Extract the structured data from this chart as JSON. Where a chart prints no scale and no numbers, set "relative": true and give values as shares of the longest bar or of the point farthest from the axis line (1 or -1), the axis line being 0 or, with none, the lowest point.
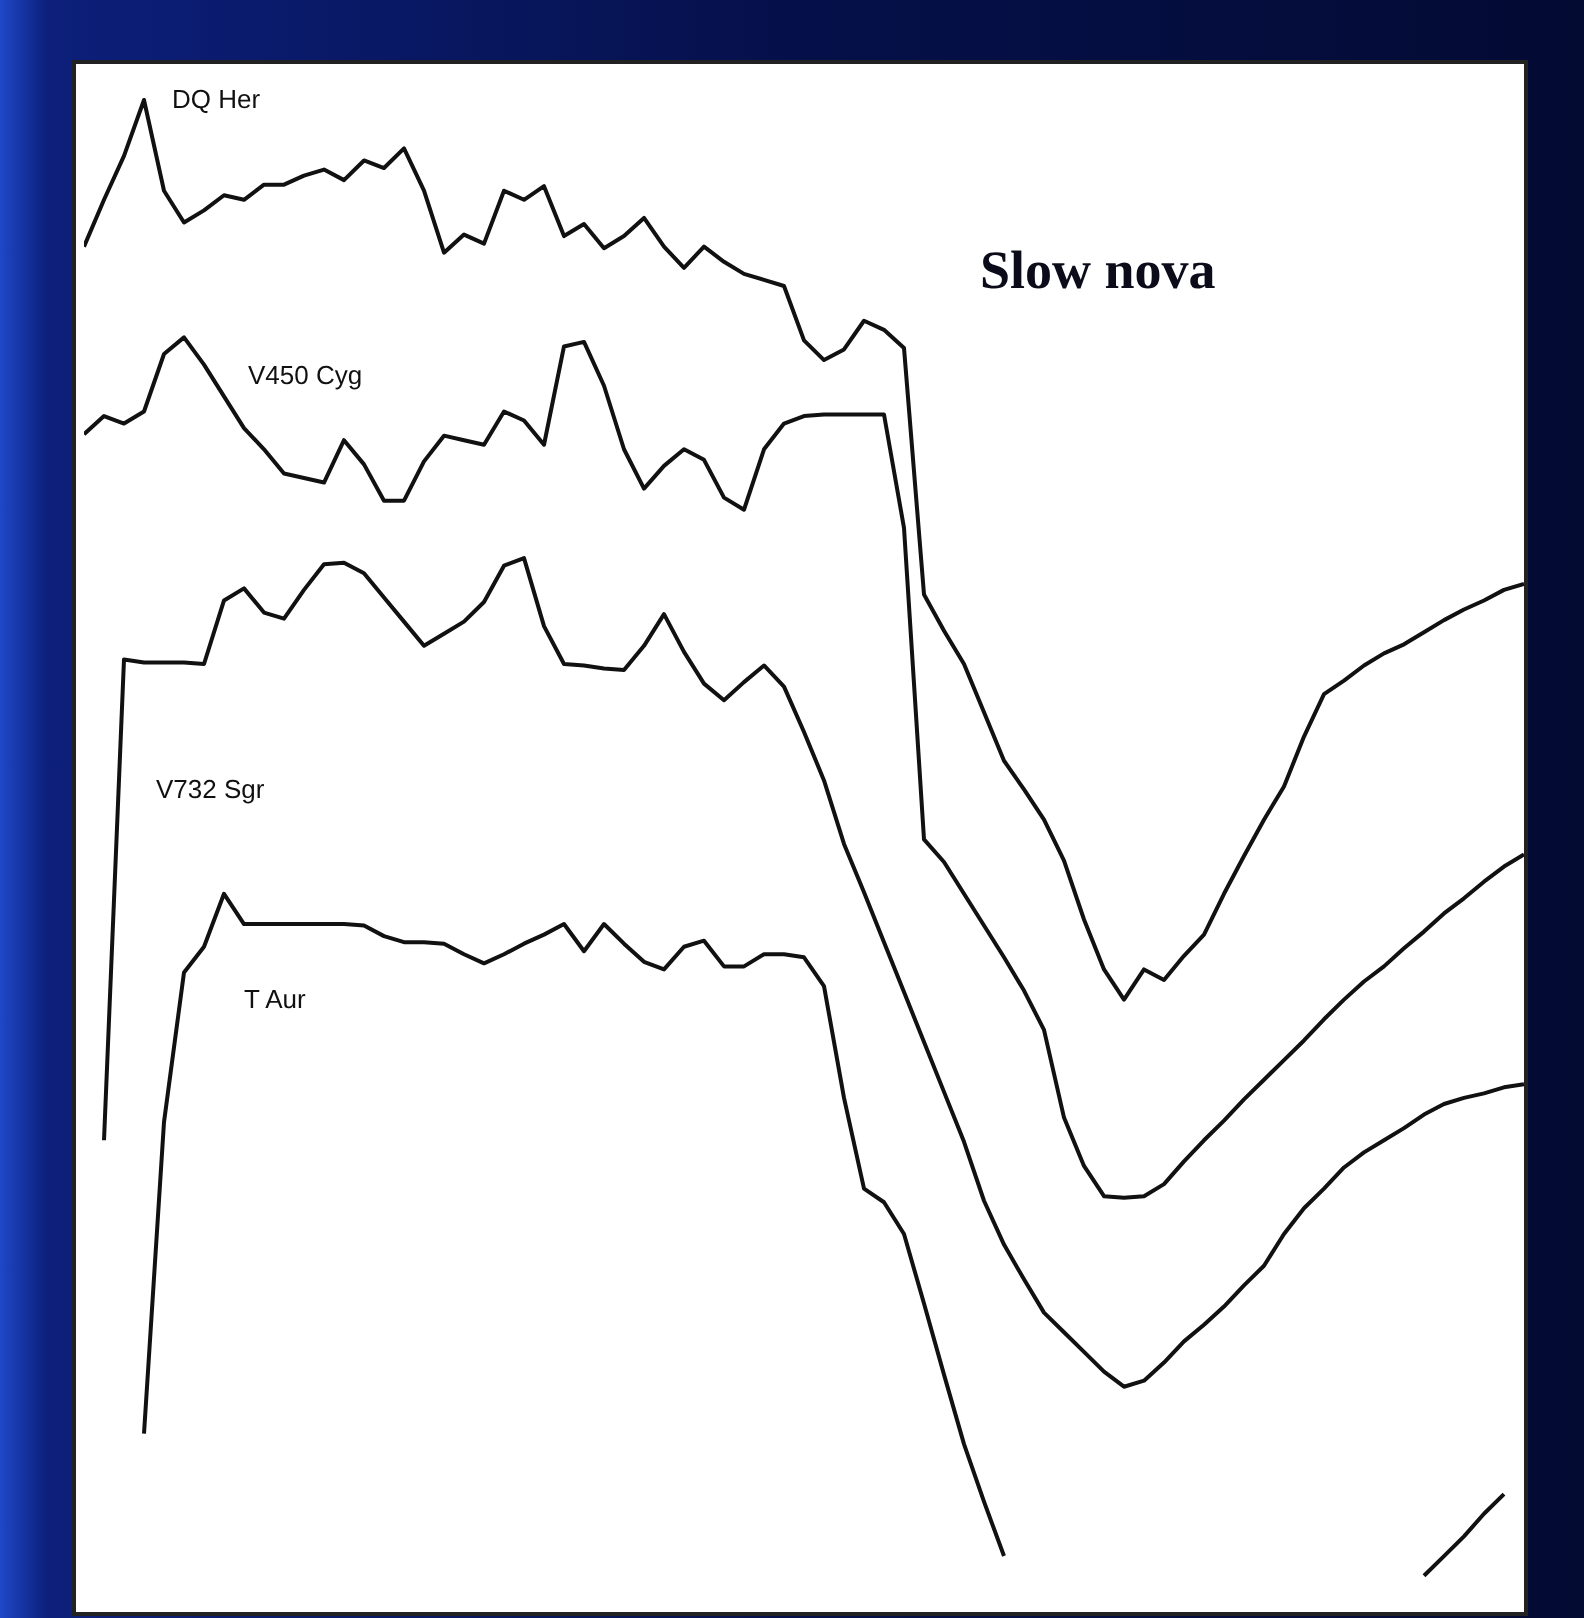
{
  "chart_data": {
    "type": "line",
    "relative": true,
    "annotations": [
      "Slow nova"
    ],
    "categories": [
      null,
      null,
      null,
      null,
      null,
      null,
      null,
      null,
      null,
      null,
      null,
      null,
      null,
      null,
      null,
      null,
      null,
      null,
      null,
      null,
      null,
      null,
      null,
      null,
      null,
      null,
      null,
      null,
      null,
      null,
      null,
      null,
      null,
      null,
      null,
      null,
      null,
      null,
      null,
      null,
      null,
      null,
      null,
      null,
      null,
      null,
      null,
      null,
      null,
      null,
      null,
      null,
      null,
      null,
      null,
      null,
      null,
      null,
      null,
      null,
      null,
      null,
      null,
      null,
      null,
      null,
      null,
      null,
      null,
      null,
      null,
      null,
      null
    ],
    "series": [
      {
        "name": "DQ Her",
        "color": "#111111",
        "values": [
          0.903,
          0.934,
          0.963,
          1.0,
          0.94,
          0.919,
          0.927,
          0.937,
          0.934,
          0.944,
          0.944,
          0.95,
          0.954,
          0.947,
          0.96,
          0.955,
          0.968,
          0.94,
          0.899,
          0.911,
          0.905,
          0.94,
          0.934,
          0.943,
          0.91,
          0.918,
          0.902,
          0.91,
          0.922,
          0.903,
          0.889,
          0.903,
          0.893,
          0.885,
          0.881,
          0.877,
          0.841,
          0.828,
          0.835,
          0.854,
          0.848,
          0.836,
          0.673,
          0.649,
          0.627,
          0.595,
          0.563,
          0.544,
          0.524,
          0.497,
          0.458,
          0.425,
          0.405,
          0.425,
          0.418,
          0.434,
          0.448,
          0.475,
          0.5,
          0.524,
          0.546,
          0.579,
          0.607,
          0.616,
          0.626,
          0.634,
          0.64,
          0.648,
          0.656,
          0.663,
          0.669,
          0.676,
          0.68
        ]
      },
      {
        "name": "V450 Cyg",
        "color": "#111111",
        "values": [
          0.779,
          0.791,
          0.786,
          0.794,
          0.832,
          0.843,
          0.825,
          0.804,
          0.783,
          0.769,
          0.753,
          0.75,
          0.747,
          0.775,
          0.759,
          0.735,
          0.735,
          0.761,
          0.778,
          0.775,
          0.772,
          0.794,
          0.788,
          0.772,
          0.837,
          0.84,
          0.811,
          0.769,
          0.743,
          0.758,
          0.769,
          0.762,
          0.737,
          0.729,
          0.769,
          0.786,
          0.791,
          0.792,
          0.792,
          0.792,
          0.792,
          0.717,
          0.511,
          0.496,
          0.475,
          0.454,
          0.433,
          0.411,
          0.385,
          0.327,
          0.295,
          0.275,
          0.274,
          0.275,
          0.283,
          0.298,
          0.312,
          0.325,
          0.339,
          0.352,
          0.365,
          0.378,
          0.392,
          0.405,
          0.417,
          0.427,
          0.439,
          0.45,
          0.462,
          0.472,
          0.483,
          0.493,
          0.501
        ]
      },
      {
        "name": "V732 Sgr",
        "color": "#111111",
        "values": [
          null,
          0.312,
          0.63,
          0.628,
          0.628,
          0.628,
          0.627,
          0.669,
          0.677,
          0.661,
          0.657,
          0.676,
          0.693,
          0.694,
          0.687,
          0.671,
          0.655,
          0.639,
          0.647,
          0.655,
          0.668,
          0.692,
          0.697,
          0.652,
          0.627,
          0.626,
          0.624,
          0.623,
          0.639,
          0.66,
          0.635,
          0.614,
          0.603,
          0.615,
          0.626,
          0.612,
          0.582,
          0.55,
          0.508,
          0.476,
          0.443,
          0.41,
          0.377,
          0.344,
          0.311,
          0.272,
          0.243,
          0.22,
          0.198,
          0.185,
          0.172,
          0.159,
          0.149,
          0.153,
          0.165,
          0.179,
          0.19,
          0.202,
          0.216,
          0.229,
          0.25,
          0.267,
          0.28,
          0.294,
          0.304,
          0.312,
          0.32,
          0.329,
          0.336,
          0.34,
          0.343,
          0.347,
          0.349
        ]
      },
      {
        "name": "T Aur",
        "color": "#111111",
        "values": [
          null,
          null,
          null,
          0.118,
          0.324,
          0.423,
          0.44,
          0.475,
          0.455,
          0.455,
          0.455,
          0.455,
          0.455,
          0.455,
          0.454,
          0.447,
          0.443,
          0.443,
          0.442,
          0.435,
          0.429,
          0.435,
          0.442,
          0.448,
          0.455,
          0.437,
          0.455,
          0.442,
          0.43,
          0.425,
          0.44,
          0.444,
          0.427,
          0.427,
          0.435,
          0.435,
          0.433,
          0.414,
          0.34,
          0.28,
          0.271,
          0.25,
          0.204,
          0.157,
          0.111,
          0.073,
          0.037,
          null,
          null,
          null,
          null,
          null,
          null,
          null,
          null,
          null,
          null,
          null,
          null,
          null,
          null,
          null,
          null,
          null,
          null,
          null,
          null,
          0.024,
          0.037,
          0.05,
          0.065,
          0.078,
          null
        ]
      }
    ]
  }
}
